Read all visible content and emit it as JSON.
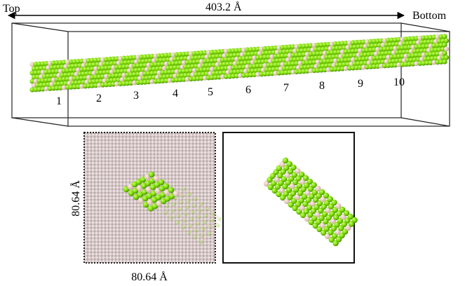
{
  "labels": {
    "top": "Top",
    "bottom": "Bottom",
    "length": "403.2 Å",
    "side_y": "80.64 Å",
    "side_x": "80.64 Å"
  },
  "segments": [
    "1",
    "2",
    "3",
    "4",
    "5",
    "6",
    "7",
    "8",
    "9",
    "10"
  ]
}
